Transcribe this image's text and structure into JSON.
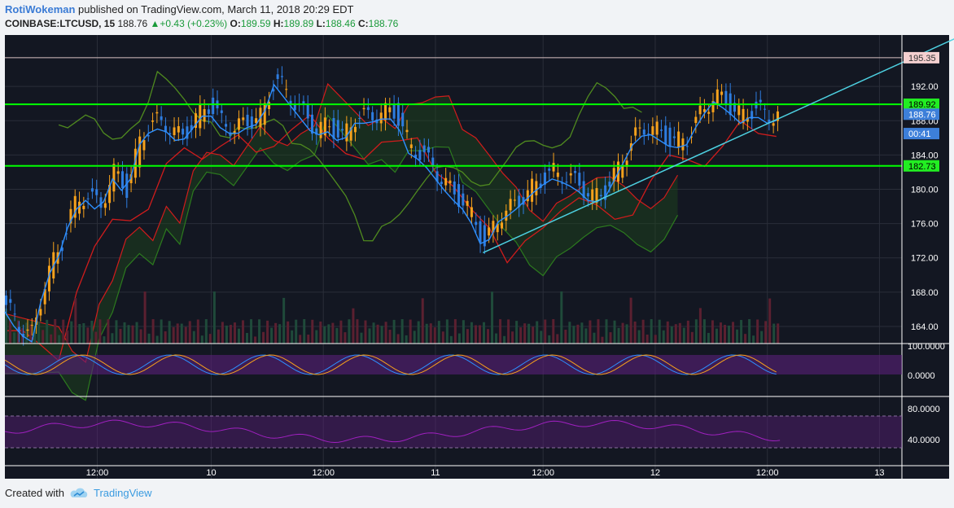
{
  "header": {
    "author": "RotiWokeman",
    "published_text": " published on TradingView.com, March 11, 2018 20:29 EDT",
    "symbol": "COINBASE:LTCUSD, 15",
    "last": "188.76",
    "change": "+0.43 (+0.23%)",
    "open_label": "O:",
    "open": "189.59",
    "high_label": "H:",
    "high": "189.89",
    "low_label": "L:",
    "low": "188.46",
    "close_label": "C:",
    "close": "188.76"
  },
  "footer": {
    "created_with": "Created with",
    "brand": "TradingView"
  },
  "colors": {
    "background": "#131722",
    "up": "#f7a21c",
    "down": "#2e7de0",
    "green_line": "#00ff00",
    "trend_line": "#4dd0e1",
    "kijun": "#d01c1c",
    "span_green": "#2c7a1e",
    "chikou": "#4f8a1f",
    "oscillator_band": "#5a1f7a"
  },
  "chart_data": {
    "type": "line",
    "title": "",
    "symbol": "COINBASE:LTCUSD",
    "interval": "15",
    "xlabel": "",
    "ylabel": "",
    "ylim": [
      162,
      198
    ],
    "x_ticks": [
      "12:00",
      "10",
      "12:00",
      "11",
      "12:00",
      "12",
      "12:00",
      "13"
    ],
    "y_ticks": [
      "192.00",
      "188.00",
      "184.00",
      "180.00",
      "176.00",
      "172.00",
      "168.00",
      "164.00"
    ],
    "price_tags": [
      {
        "label": "195.35",
        "value": 195.35,
        "style": "pink"
      },
      {
        "label": "189.92",
        "value": 189.92,
        "style": "green"
      },
      {
        "label": "188.76",
        "value": 188.76,
        "style": "blue"
      },
      {
        "label": "00:41",
        "value": 186.5,
        "style": "blue"
      },
      {
        "label": "182.73",
        "value": 182.73,
        "style": "green"
      }
    ],
    "horizontal_lines": [
      {
        "value": 189.92,
        "color": "#00ff00"
      },
      {
        "value": 182.73,
        "color": "#00ff00"
      },
      {
        "value": 195.35,
        "color": "#d9c2c2"
      }
    ],
    "trend_line": {
      "from": [
        0.533,
        172.6
      ],
      "to": [
        1.068,
        198.0
      ]
    },
    "price_series": [
      [
        0.0,
        166.5
      ],
      [
        0.015,
        164.0
      ],
      [
        0.03,
        163.0
      ],
      [
        0.045,
        170.0
      ],
      [
        0.06,
        173.0
      ],
      [
        0.075,
        178.0
      ],
      [
        0.09,
        179.5
      ],
      [
        0.105,
        178.0
      ],
      [
        0.12,
        182.0
      ],
      [
        0.135,
        180.0
      ],
      [
        0.15,
        186.0
      ],
      [
        0.165,
        188.0
      ],
      [
        0.18,
        187.5
      ],
      [
        0.195,
        186.0
      ],
      [
        0.21,
        188.0
      ],
      [
        0.225,
        190.0
      ],
      [
        0.24,
        188.0
      ],
      [
        0.255,
        187.0
      ],
      [
        0.27,
        188.0
      ],
      [
        0.285,
        188.5
      ],
      [
        0.3,
        193.0
      ],
      [
        0.315,
        191.0
      ],
      [
        0.33,
        189.0
      ],
      [
        0.345,
        187.0
      ],
      [
        0.36,
        187.5
      ],
      [
        0.375,
        186.0
      ],
      [
        0.39,
        188.5
      ],
      [
        0.405,
        188.5
      ],
      [
        0.42,
        189.0
      ],
      [
        0.435,
        189.0
      ],
      [
        0.45,
        185.0
      ],
      [
        0.465,
        184.0
      ],
      [
        0.48,
        182.0
      ],
      [
        0.495,
        180.0
      ],
      [
        0.51,
        178.5
      ],
      [
        0.525,
        176.0
      ],
      [
        0.533,
        173.5
      ],
      [
        0.55,
        177.0
      ],
      [
        0.565,
        178.0
      ],
      [
        0.58,
        179.5
      ],
      [
        0.595,
        181.0
      ],
      [
        0.61,
        182.0
      ],
      [
        0.625,
        181.5
      ],
      [
        0.64,
        180.5
      ],
      [
        0.655,
        179.0
      ],
      [
        0.67,
        180.0
      ],
      [
        0.685,
        183.0
      ],
      [
        0.7,
        186.0
      ],
      [
        0.715,
        187.5
      ],
      [
        0.73,
        186.5
      ],
      [
        0.745,
        185.5
      ],
      [
        0.76,
        186.0
      ],
      [
        0.775,
        189.0
      ],
      [
        0.79,
        191.0
      ],
      [
        0.805,
        190.0
      ],
      [
        0.82,
        188.5
      ],
      [
        0.835,
        189.5
      ],
      [
        0.85,
        188.5
      ],
      [
        0.865,
        189.0
      ]
    ],
    "oscillator1_ticks": [
      "100.0000",
      "0.0000"
    ],
    "oscillator2_ticks": [
      "80.0000",
      "40.0000"
    ]
  }
}
